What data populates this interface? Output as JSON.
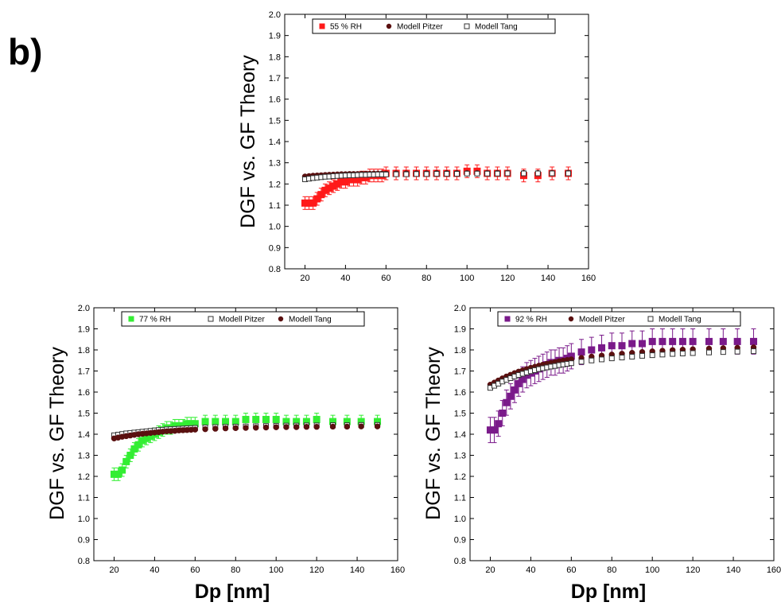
{
  "figure": {
    "panel_label": "b)"
  },
  "chart_data": [
    {
      "type": "scatter",
      "ylabel": "DGF vs. GF Theory",
      "xlabel": "",
      "xlim": [
        10,
        160
      ],
      "ylim": [
        0.8,
        2.0
      ],
      "xticks": [
        20,
        40,
        60,
        80,
        100,
        120,
        140,
        160
      ],
      "yticks": [
        "0.8",
        "0.9",
        "1.0",
        "1.1",
        "1.2",
        "1.3",
        "1.4",
        "1.5",
        "1.6",
        "1.7",
        "1.8",
        "1.9",
        "2.0"
      ],
      "legend": [
        "55 % RH",
        "Modell Pitzer",
        "Modell Tang"
      ],
      "legend_position": "top",
      "colors": {
        "measured": "#ff1a1a",
        "pitzer": "#5a1010",
        "tang": "#ffffff"
      },
      "series": [
        {
          "name": "55 % RH",
          "marker": "square",
          "x": [
            20,
            22,
            24,
            26,
            28,
            30,
            32,
            34,
            36,
            38,
            40,
            42,
            44,
            46,
            48,
            50,
            52,
            54,
            56,
            58,
            60,
            65,
            70,
            75,
            80,
            85,
            90,
            95,
            100,
            105,
            110,
            115,
            120,
            128,
            135,
            142,
            150
          ],
          "y": [
            1.11,
            1.11,
            1.11,
            1.13,
            1.15,
            1.17,
            1.18,
            1.19,
            1.2,
            1.21,
            1.21,
            1.22,
            1.22,
            1.22,
            1.23,
            1.23,
            1.24,
            1.24,
            1.24,
            1.24,
            1.25,
            1.25,
            1.25,
            1.25,
            1.25,
            1.25,
            1.25,
            1.25,
            1.26,
            1.26,
            1.25,
            1.25,
            1.25,
            1.24,
            1.24,
            1.25,
            1.25
          ],
          "err": 0.03
        },
        {
          "name": "Modell Pitzer",
          "marker": "circle",
          "x": [
            20,
            22,
            24,
            26,
            28,
            30,
            32,
            34,
            36,
            38,
            40,
            42,
            44,
            46,
            48,
            50,
            52,
            54,
            56,
            58,
            60,
            65,
            70,
            75,
            80,
            85,
            90,
            95,
            100,
            105,
            110,
            115,
            120,
            128,
            135,
            142,
            150
          ],
          "y": [
            1.235,
            1.237,
            1.239,
            1.24,
            1.241,
            1.242,
            1.243,
            1.244,
            1.245,
            1.246,
            1.246,
            1.247,
            1.247,
            1.247,
            1.248,
            1.248,
            1.248,
            1.249,
            1.249,
            1.249,
            1.249,
            1.25,
            1.25,
            1.25,
            1.25,
            1.251,
            1.251,
            1.251,
            1.251,
            1.251,
            1.251,
            1.252,
            1.252,
            1.252,
            1.252,
            1.252,
            1.253
          ]
        },
        {
          "name": "Modell Tang",
          "marker": "open-square",
          "x": [
            20,
            22,
            24,
            26,
            28,
            30,
            32,
            34,
            36,
            38,
            40,
            42,
            44,
            46,
            48,
            50,
            52,
            54,
            56,
            58,
            60,
            65,
            70,
            75,
            80,
            85,
            90,
            95,
            100,
            105,
            110,
            115,
            120,
            128,
            135,
            142,
            150
          ],
          "y": [
            1.222,
            1.225,
            1.228,
            1.23,
            1.232,
            1.234,
            1.235,
            1.237,
            1.238,
            1.239,
            1.24,
            1.241,
            1.241,
            1.242,
            1.243,
            1.243,
            1.244,
            1.244,
            1.245,
            1.245,
            1.245,
            1.246,
            1.246,
            1.247,
            1.247,
            1.248,
            1.248,
            1.248,
            1.249,
            1.249,
            1.249,
            1.249,
            1.25,
            1.25,
            1.25,
            1.25,
            1.25
          ]
        }
      ]
    },
    {
      "type": "scatter",
      "ylabel": "DGF vs. GF Theory",
      "xlabel": "Dp [nm]",
      "xlim": [
        10,
        160
      ],
      "ylim": [
        0.8,
        2.0
      ],
      "xticks": [
        20,
        40,
        60,
        80,
        100,
        120,
        140,
        160
      ],
      "yticks": [
        "0.8",
        "0.9",
        "1.0",
        "1.1",
        "1.2",
        "1.3",
        "1.4",
        "1.5",
        "1.6",
        "1.7",
        "1.8",
        "1.9",
        "2.0"
      ],
      "legend": [
        "77 % RH",
        "Modell Pitzer",
        "Modell Tang"
      ],
      "legend_position": "top",
      "colors": {
        "measured": "#33ee33",
        "pitzer": "#ffffff",
        "tang": "#5a1010"
      },
      "series": [
        {
          "name": "77 % RH",
          "marker": "square",
          "x": [
            20,
            22,
            24,
            26,
            28,
            30,
            32,
            34,
            36,
            38,
            40,
            42,
            44,
            46,
            48,
            50,
            52,
            54,
            56,
            58,
            60,
            65,
            70,
            75,
            80,
            85,
            90,
            95,
            100,
            105,
            110,
            115,
            120,
            128,
            135,
            142,
            150
          ],
          "y": [
            1.21,
            1.21,
            1.23,
            1.27,
            1.3,
            1.33,
            1.35,
            1.37,
            1.38,
            1.39,
            1.4,
            1.41,
            1.42,
            1.43,
            1.43,
            1.44,
            1.44,
            1.44,
            1.45,
            1.45,
            1.45,
            1.46,
            1.46,
            1.46,
            1.46,
            1.47,
            1.47,
            1.47,
            1.47,
            1.46,
            1.46,
            1.46,
            1.47,
            1.46,
            1.46,
            1.46,
            1.46
          ],
          "err": 0.03
        },
        {
          "name": "Modell Pitzer",
          "marker": "open-square",
          "x": [
            20,
            22,
            24,
            26,
            28,
            30,
            32,
            34,
            36,
            38,
            40,
            42,
            44,
            46,
            48,
            50,
            52,
            54,
            56,
            58,
            60,
            65,
            70,
            75,
            80,
            85,
            90,
            95,
            100,
            105,
            110,
            115,
            120,
            128,
            135,
            142,
            150
          ],
          "y": [
            1.395,
            1.398,
            1.401,
            1.404,
            1.406,
            1.408,
            1.41,
            1.412,
            1.414,
            1.416,
            1.418,
            1.42,
            1.421,
            1.423,
            1.424,
            1.425,
            1.426,
            1.427,
            1.428,
            1.429,
            1.43,
            1.432,
            1.434,
            1.435,
            1.436,
            1.437,
            1.438,
            1.439,
            1.44,
            1.441,
            1.441,
            1.442,
            1.442,
            1.443,
            1.443,
            1.444,
            1.444
          ]
        },
        {
          "name": "Modell Tang",
          "marker": "circle",
          "x": [
            20,
            22,
            24,
            26,
            28,
            30,
            32,
            34,
            36,
            38,
            40,
            42,
            44,
            46,
            48,
            50,
            52,
            54,
            56,
            58,
            60,
            65,
            70,
            75,
            80,
            85,
            90,
            95,
            100,
            105,
            110,
            115,
            120,
            128,
            135,
            142,
            150
          ],
          "y": [
            1.38,
            1.384,
            1.388,
            1.391,
            1.394,
            1.397,
            1.4,
            1.402,
            1.404,
            1.406,
            1.408,
            1.41,
            1.412,
            1.414,
            1.415,
            1.416,
            1.418,
            1.419,
            1.42,
            1.421,
            1.422,
            1.424,
            1.426,
            1.428,
            1.429,
            1.43,
            1.431,
            1.432,
            1.433,
            1.434,
            1.434,
            1.435,
            1.435,
            1.436,
            1.436,
            1.437,
            1.437
          ]
        }
      ]
    },
    {
      "type": "scatter",
      "ylabel": "DGF vs. GF Theory",
      "xlabel": "Dp [nm]",
      "xlim": [
        10,
        160
      ],
      "ylim": [
        0.8,
        2.0
      ],
      "xticks": [
        20,
        40,
        60,
        80,
        100,
        120,
        140,
        160
      ],
      "yticks": [
        "0.8",
        "0.9",
        "1.0",
        "1.1",
        "1.2",
        "1.3",
        "1.4",
        "1.5",
        "1.6",
        "1.7",
        "1.8",
        "1.9",
        "2.0"
      ],
      "legend": [
        "92 % RH",
        "Modell Pitzer",
        "Modell Tang"
      ],
      "legend_position": "top",
      "colors": {
        "measured": "#7a1a8a",
        "pitzer": "#5a1010",
        "tang": "#ffffff"
      },
      "series": [
        {
          "name": "92 % RH",
          "marker": "square",
          "x": [
            20,
            22,
            24,
            26,
            28,
            30,
            32,
            34,
            36,
            38,
            40,
            42,
            44,
            46,
            48,
            50,
            52,
            54,
            56,
            58,
            60,
            65,
            70,
            75,
            80,
            85,
            90,
            95,
            100,
            105,
            110,
            115,
            120,
            128,
            135,
            142,
            150
          ],
          "y": [
            1.42,
            1.42,
            1.45,
            1.5,
            1.55,
            1.58,
            1.61,
            1.64,
            1.66,
            1.68,
            1.69,
            1.7,
            1.71,
            1.72,
            1.73,
            1.74,
            1.74,
            1.75,
            1.75,
            1.76,
            1.77,
            1.79,
            1.8,
            1.81,
            1.82,
            1.82,
            1.83,
            1.83,
            1.84,
            1.84,
            1.84,
            1.84,
            1.84,
            1.84,
            1.84,
            1.84,
            1.84
          ],
          "err": 0.06
        },
        {
          "name": "Modell Pitzer",
          "marker": "circle",
          "x": [
            20,
            22,
            24,
            26,
            28,
            30,
            32,
            34,
            36,
            38,
            40,
            42,
            44,
            46,
            48,
            50,
            52,
            54,
            56,
            58,
            60,
            65,
            70,
            75,
            80,
            85,
            90,
            95,
            100,
            105,
            110,
            115,
            120,
            128,
            135,
            142,
            150
          ],
          "y": [
            1.635,
            1.645,
            1.655,
            1.665,
            1.674,
            1.682,
            1.69,
            1.697,
            1.703,
            1.709,
            1.715,
            1.72,
            1.725,
            1.73,
            1.734,
            1.738,
            1.742,
            1.746,
            1.749,
            1.752,
            1.755,
            1.762,
            1.768,
            1.773,
            1.778,
            1.782,
            1.786,
            1.79,
            1.793,
            1.796,
            1.799,
            1.801,
            1.803,
            1.806,
            1.808,
            1.81,
            1.812
          ]
        },
        {
          "name": "Modell Tang",
          "marker": "open-square",
          "x": [
            20,
            22,
            24,
            26,
            28,
            30,
            32,
            34,
            36,
            38,
            40,
            42,
            44,
            46,
            48,
            50,
            52,
            54,
            56,
            58,
            60,
            65,
            70,
            75,
            80,
            85,
            90,
            95,
            100,
            105,
            110,
            115,
            120,
            128,
            135,
            142,
            150
          ],
          "y": [
            1.62,
            1.63,
            1.64,
            1.65,
            1.658,
            1.666,
            1.674,
            1.681,
            1.687,
            1.693,
            1.699,
            1.704,
            1.709,
            1.713,
            1.717,
            1.721,
            1.724,
            1.728,
            1.731,
            1.734,
            1.737,
            1.744,
            1.75,
            1.755,
            1.76,
            1.764,
            1.768,
            1.772,
            1.775,
            1.778,
            1.781,
            1.783,
            1.785,
            1.788,
            1.79,
            1.792,
            1.794
          ]
        }
      ]
    }
  ]
}
